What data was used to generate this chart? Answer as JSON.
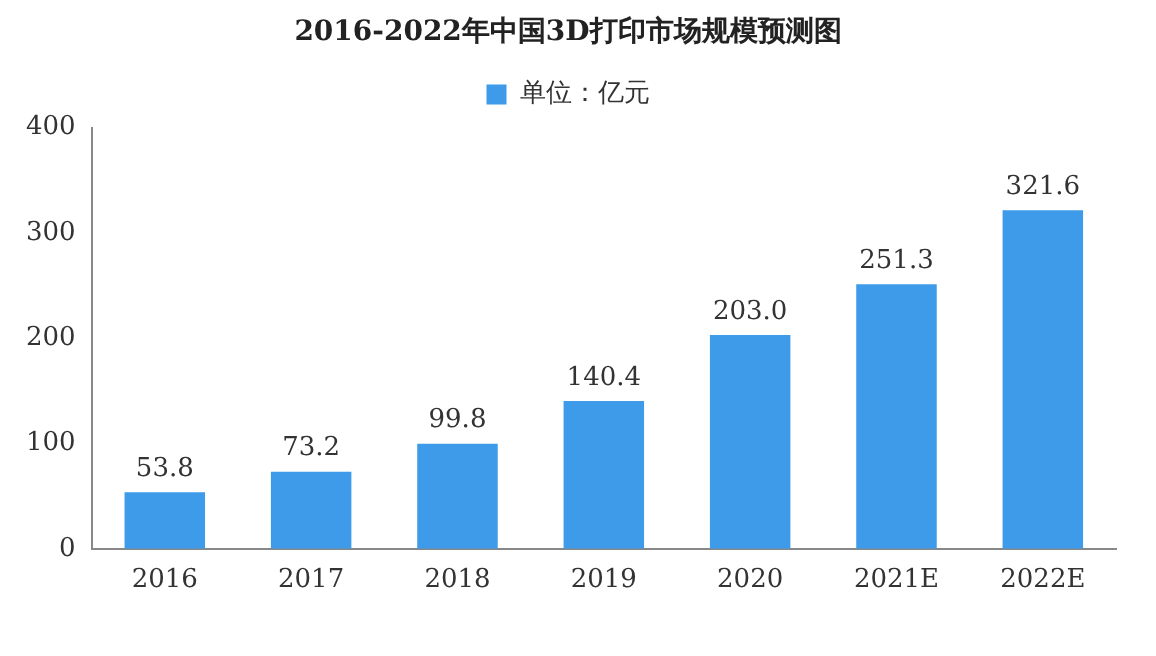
{
  "chart_data": {
    "type": "bar",
    "title": "2016-2022年中国3D打印市场规模预测图",
    "categories": [
      "2016",
      "2017",
      "2018",
      "2019",
      "2020",
      "2021E",
      "2022E"
    ],
    "series": [
      {
        "name": "单位：亿元",
        "color": "#3d9be9",
        "values": [
          53.8,
          73.2,
          99.8,
          140.4,
          203,
          251.3,
          321.6
        ],
        "value_labels": [
          "53.8",
          "73.2",
          "99.8",
          "140.4",
          "203.0",
          "251.3",
          "321.6"
        ]
      }
    ],
    "ylim": [
      0,
      400
    ],
    "yticks": [
      0,
      100,
      200,
      300,
      400
    ],
    "grid": false,
    "legend": "top"
  }
}
